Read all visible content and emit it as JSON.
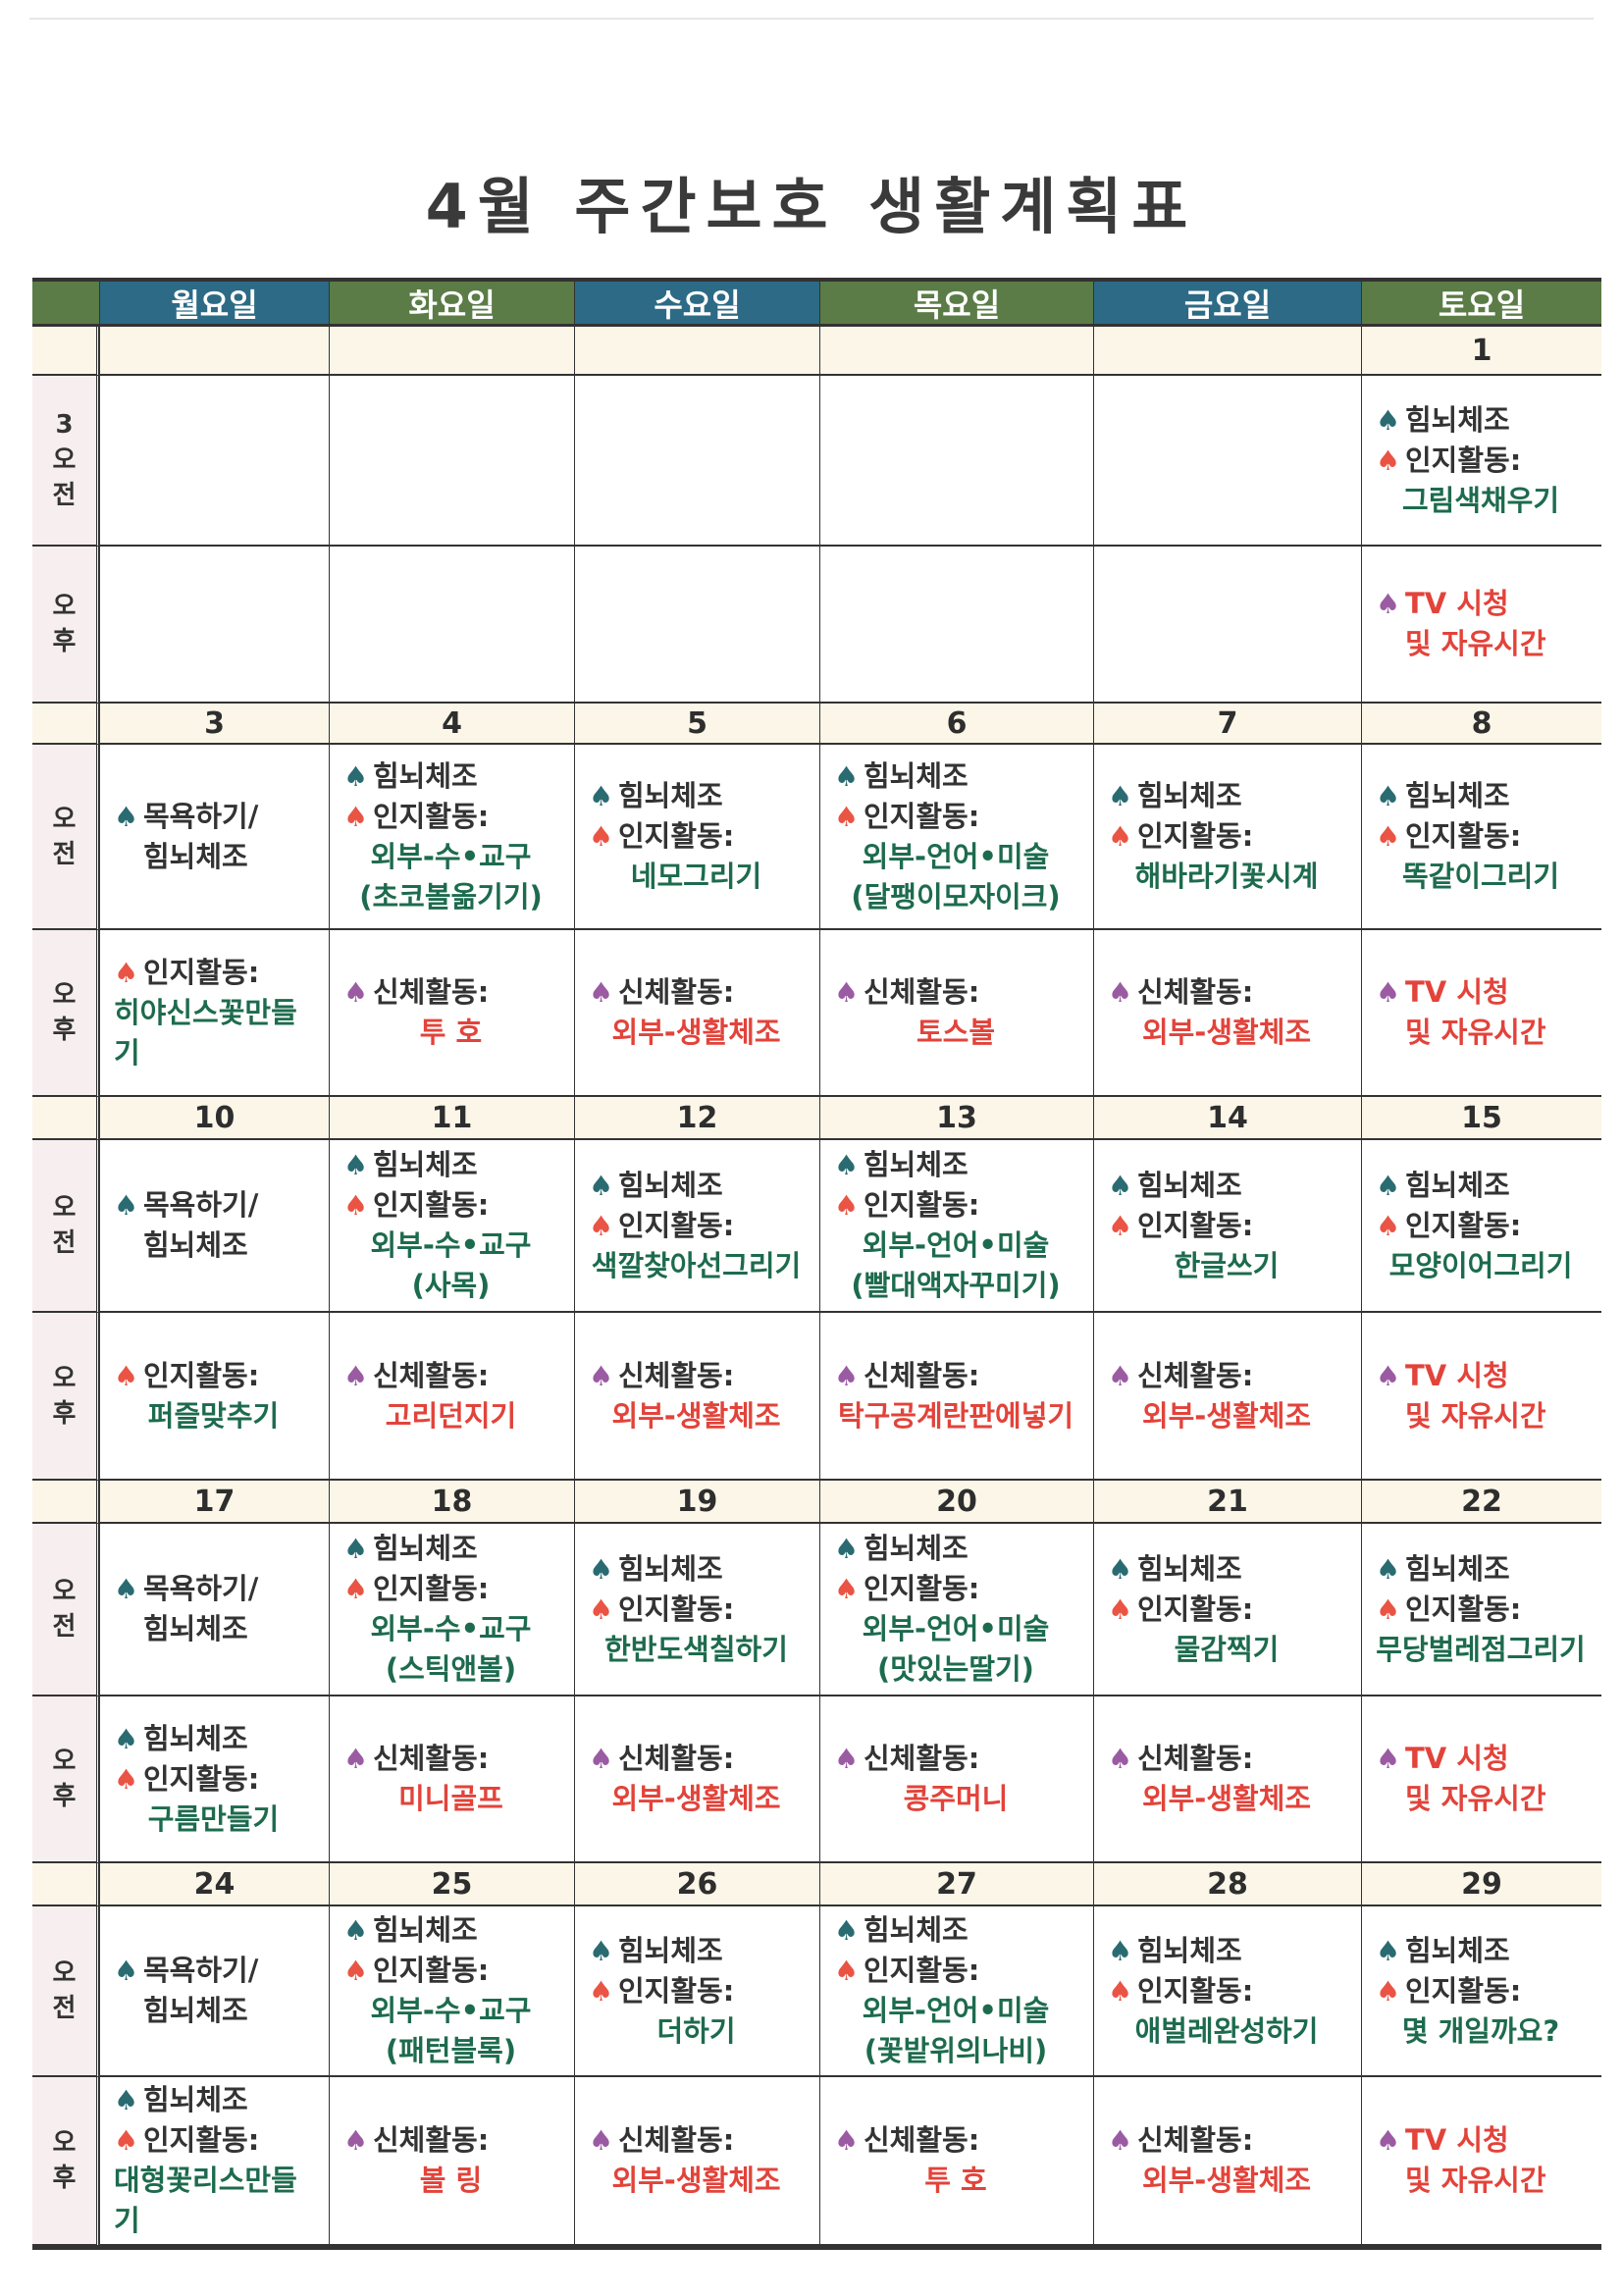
{
  "title": "4월 주간보호 생활계획표",
  "colors": {
    "header_green": "#5b7c46",
    "header_blue": "#2d6a86",
    "spade_teal": "#2a6b72",
    "spade_red": "#ea5444",
    "spade_purple": "#9b5ba3",
    "text_dark": "#333333",
    "text_green": "#1d6b4e",
    "text_red": "#e2433a"
  },
  "header": {
    "days": [
      "월요일",
      "화요일",
      "수요일",
      "목요일",
      "금요일",
      "토요일"
    ]
  },
  "labels": {
    "am": "오전",
    "pm": "오후",
    "first_am_prefix": "3"
  },
  "weeks": [
    {
      "dates": [
        "",
        "",
        "",
        "",
        "",
        "1"
      ],
      "am": [
        [],
        [],
        [],
        [],
        [],
        [
          {
            "s": "teal",
            "t": "힘뇌체조",
            "c": "dark"
          },
          {
            "s": "red",
            "t": "인지활동:",
            "c": "dark"
          },
          {
            "t": "그림색채우기",
            "c": "green",
            "k": "detail"
          }
        ]
      ],
      "pm": [
        [],
        [],
        [],
        [],
        [],
        [
          {
            "s": "purple",
            "t": "TV 시청",
            "c": "red"
          },
          {
            "t": "및 자유시간",
            "c": "red",
            "k": "cont"
          }
        ]
      ]
    },
    {
      "dates": [
        "3",
        "4",
        "5",
        "6",
        "7",
        "8"
      ],
      "am": [
        [
          {
            "s": "teal",
            "t": "목욕하기/",
            "c": "dark"
          },
          {
            "t": "힘뇌체조",
            "c": "dark",
            "k": "cont"
          }
        ],
        [
          {
            "s": "teal",
            "t": "힘뇌체조",
            "c": "dark"
          },
          {
            "s": "red",
            "t": "인지활동:",
            "c": "dark"
          },
          {
            "t": "외부-수•교구",
            "c": "green",
            "k": "detail"
          },
          {
            "t": "(초코볼옮기기)",
            "c": "green",
            "k": "detail"
          }
        ],
        [
          {
            "s": "teal",
            "t": "힘뇌체조",
            "c": "dark"
          },
          {
            "s": "red",
            "t": "인지활동:",
            "c": "dark"
          },
          {
            "t": "네모그리기",
            "c": "green",
            "k": "detail"
          }
        ],
        [
          {
            "s": "teal",
            "t": "힘뇌체조",
            "c": "dark"
          },
          {
            "s": "red",
            "t": "인지활동:",
            "c": "dark"
          },
          {
            "t": "외부-언어•미술",
            "c": "green",
            "k": "detail"
          },
          {
            "t": "(달팽이모자이크)",
            "c": "green",
            "k": "detail"
          }
        ],
        [
          {
            "s": "teal",
            "t": "힘뇌체조",
            "c": "dark"
          },
          {
            "s": "red",
            "t": "인지활동:",
            "c": "dark"
          },
          {
            "t": "해바라기꽃시계",
            "c": "green",
            "k": "detail"
          }
        ],
        [
          {
            "s": "teal",
            "t": "힘뇌체조",
            "c": "dark"
          },
          {
            "s": "red",
            "t": "인지활동:",
            "c": "dark"
          },
          {
            "t": "똑같이그리기",
            "c": "green",
            "k": "detail"
          }
        ]
      ],
      "pm": [
        [
          {
            "s": "red",
            "t": "인지활동:",
            "c": "dark"
          },
          {
            "t": "히야신스꽃만들기",
            "c": "green",
            "k": "wrap"
          }
        ],
        [
          {
            "s": "purple",
            "t": "신체활동:",
            "c": "dark"
          },
          {
            "t": "투 호",
            "c": "red",
            "k": "detail"
          }
        ],
        [
          {
            "s": "purple",
            "t": "신체활동:",
            "c": "dark"
          },
          {
            "t": "외부-생활체조",
            "c": "red",
            "k": "detail"
          }
        ],
        [
          {
            "s": "purple",
            "t": "신체활동:",
            "c": "dark"
          },
          {
            "t": "토스볼",
            "c": "red",
            "k": "detail"
          }
        ],
        [
          {
            "s": "purple",
            "t": "신체활동:",
            "c": "dark"
          },
          {
            "t": "외부-생활체조",
            "c": "red",
            "k": "detail"
          }
        ],
        [
          {
            "s": "purple",
            "t": "TV 시청",
            "c": "red"
          },
          {
            "t": "및 자유시간",
            "c": "red",
            "k": "cont"
          }
        ]
      ]
    },
    {
      "dates": [
        "10",
        "11",
        "12",
        "13",
        "14",
        "15"
      ],
      "am": [
        [
          {
            "s": "teal",
            "t": "목욕하기/",
            "c": "dark"
          },
          {
            "t": "힘뇌체조",
            "c": "dark",
            "k": "cont"
          }
        ],
        [
          {
            "s": "teal",
            "t": "힘뇌체조",
            "c": "dark"
          },
          {
            "s": "red",
            "t": "인지활동:",
            "c": "dark"
          },
          {
            "t": "외부-수•교구",
            "c": "green",
            "k": "detail"
          },
          {
            "t": "(사목)",
            "c": "green",
            "k": "detail"
          }
        ],
        [
          {
            "s": "teal",
            "t": "힘뇌체조",
            "c": "dark"
          },
          {
            "s": "red",
            "t": "인지활동:",
            "c": "dark"
          },
          {
            "t": "색깔찾아선그리기",
            "c": "green",
            "k": "detail"
          }
        ],
        [
          {
            "s": "teal",
            "t": "힘뇌체조",
            "c": "dark"
          },
          {
            "s": "red",
            "t": "인지활동:",
            "c": "dark"
          },
          {
            "t": "외부-언어•미술",
            "c": "green",
            "k": "detail"
          },
          {
            "t": "(빨대액자꾸미기)",
            "c": "green",
            "k": "detail"
          }
        ],
        [
          {
            "s": "teal",
            "t": "힘뇌체조",
            "c": "dark"
          },
          {
            "s": "red",
            "t": "인지활동:",
            "c": "dark"
          },
          {
            "t": "한글쓰기",
            "c": "green",
            "k": "detail"
          }
        ],
        [
          {
            "s": "teal",
            "t": "힘뇌체조",
            "c": "dark"
          },
          {
            "s": "red",
            "t": "인지활동:",
            "c": "dark"
          },
          {
            "t": "모양이어그리기",
            "c": "green",
            "k": "detail"
          }
        ]
      ],
      "pm": [
        [
          {
            "s": "red",
            "t": "인지활동:",
            "c": "dark"
          },
          {
            "t": "퍼즐맞추기",
            "c": "green",
            "k": "detail"
          }
        ],
        [
          {
            "s": "purple",
            "t": "신체활동:",
            "c": "dark"
          },
          {
            "t": "고리던지기",
            "c": "red",
            "k": "detail"
          }
        ],
        [
          {
            "s": "purple",
            "t": "신체활동:",
            "c": "dark"
          },
          {
            "t": "외부-생활체조",
            "c": "red",
            "k": "detail"
          }
        ],
        [
          {
            "s": "purple",
            "t": "신체활동:",
            "c": "dark"
          },
          {
            "t": "탁구공계란판에넣기",
            "c": "red",
            "k": "detail"
          }
        ],
        [
          {
            "s": "purple",
            "t": "신체활동:",
            "c": "dark"
          },
          {
            "t": "외부-생활체조",
            "c": "red",
            "k": "detail"
          }
        ],
        [
          {
            "s": "purple",
            "t": "TV 시청",
            "c": "red"
          },
          {
            "t": "및 자유시간",
            "c": "red",
            "k": "cont"
          }
        ]
      ]
    },
    {
      "dates": [
        "17",
        "18",
        "19",
        "20",
        "21",
        "22"
      ],
      "am": [
        [
          {
            "s": "teal",
            "t": "목욕하기/",
            "c": "dark"
          },
          {
            "t": "힘뇌체조",
            "c": "dark",
            "k": "cont"
          }
        ],
        [
          {
            "s": "teal",
            "t": "힘뇌체조",
            "c": "dark"
          },
          {
            "s": "red",
            "t": "인지활동:",
            "c": "dark"
          },
          {
            "t": "외부-수•교구",
            "c": "green",
            "k": "detail"
          },
          {
            "t": "(스틱앤볼)",
            "c": "green",
            "k": "detail"
          }
        ],
        [
          {
            "s": "teal",
            "t": "힘뇌체조",
            "c": "dark"
          },
          {
            "s": "red",
            "t": "인지활동:",
            "c": "dark"
          },
          {
            "t": "한반도색칠하기",
            "c": "green",
            "k": "detail"
          }
        ],
        [
          {
            "s": "teal",
            "t": "힘뇌체조",
            "c": "dark"
          },
          {
            "s": "red",
            "t": "인지활동:",
            "c": "dark"
          },
          {
            "t": "외부-언어•미술",
            "c": "green",
            "k": "detail"
          },
          {
            "t": "(맛있는딸기)",
            "c": "green",
            "k": "detail"
          }
        ],
        [
          {
            "s": "teal",
            "t": "힘뇌체조",
            "c": "dark"
          },
          {
            "s": "red",
            "t": "인지활동:",
            "c": "dark"
          },
          {
            "t": "물감찍기",
            "c": "green",
            "k": "detail"
          }
        ],
        [
          {
            "s": "teal",
            "t": "힘뇌체조",
            "c": "dark"
          },
          {
            "s": "red",
            "t": "인지활동:",
            "c": "dark"
          },
          {
            "t": "무당벌레점그리기",
            "c": "green",
            "k": "detail"
          }
        ]
      ],
      "pm": [
        [
          {
            "s": "teal",
            "t": "힘뇌체조",
            "c": "dark"
          },
          {
            "s": "red",
            "t": "인지활동:",
            "c": "dark"
          },
          {
            "t": "구름만들기",
            "c": "green",
            "k": "detail"
          }
        ],
        [
          {
            "s": "purple",
            "t": "신체활동:",
            "c": "dark"
          },
          {
            "t": "미니골프",
            "c": "red",
            "k": "detail"
          }
        ],
        [
          {
            "s": "purple",
            "t": "신체활동:",
            "c": "dark"
          },
          {
            "t": "외부-생활체조",
            "c": "red",
            "k": "detail"
          }
        ],
        [
          {
            "s": "purple",
            "t": "신체활동:",
            "c": "dark"
          },
          {
            "t": "콩주머니",
            "c": "red",
            "k": "detail"
          }
        ],
        [
          {
            "s": "purple",
            "t": "신체활동:",
            "c": "dark"
          },
          {
            "t": "외부-생활체조",
            "c": "red",
            "k": "detail"
          }
        ],
        [
          {
            "s": "purple",
            "t": "TV 시청",
            "c": "red"
          },
          {
            "t": "및 자유시간",
            "c": "red",
            "k": "cont"
          }
        ]
      ]
    },
    {
      "dates": [
        "24",
        "25",
        "26",
        "27",
        "28",
        "29"
      ],
      "am": [
        [
          {
            "s": "teal",
            "t": "목욕하기/",
            "c": "dark"
          },
          {
            "t": "힘뇌체조",
            "c": "dark",
            "k": "cont"
          }
        ],
        [
          {
            "s": "teal",
            "t": "힘뇌체조",
            "c": "dark"
          },
          {
            "s": "red",
            "t": "인지활동:",
            "c": "dark"
          },
          {
            "t": "외부-수•교구",
            "c": "green",
            "k": "detail"
          },
          {
            "t": "(패턴블록)",
            "c": "green",
            "k": "detail"
          }
        ],
        [
          {
            "s": "teal",
            "t": "힘뇌체조",
            "c": "dark"
          },
          {
            "s": "red",
            "t": "인지활동:",
            "c": "dark"
          },
          {
            "t": "더하기",
            "c": "green",
            "k": "detail"
          }
        ],
        [
          {
            "s": "teal",
            "t": "힘뇌체조",
            "c": "dark"
          },
          {
            "s": "red",
            "t": "인지활동:",
            "c": "dark"
          },
          {
            "t": "외부-언어•미술",
            "c": "green",
            "k": "detail"
          },
          {
            "t": "(꽃밭위의나비)",
            "c": "green",
            "k": "detail"
          }
        ],
        [
          {
            "s": "teal",
            "t": "힘뇌체조",
            "c": "dark"
          },
          {
            "s": "red",
            "t": "인지활동:",
            "c": "dark"
          },
          {
            "t": "애벌레완성하기",
            "c": "green",
            "k": "detail"
          }
        ],
        [
          {
            "s": "teal",
            "t": "힘뇌체조",
            "c": "dark"
          },
          {
            "s": "red",
            "t": "인지활동:",
            "c": "dark"
          },
          {
            "t": "몇 개일까요?",
            "c": "green",
            "k": "detail"
          }
        ]
      ],
      "pm": [
        [
          {
            "s": "teal",
            "t": "힘뇌체조",
            "c": "dark"
          },
          {
            "s": "red",
            "t": "인지활동:",
            "c": "dark"
          },
          {
            "t": "대형꽃리스만들기",
            "c": "green",
            "k": "wrap"
          }
        ],
        [
          {
            "s": "purple",
            "t": "신체활동:",
            "c": "dark"
          },
          {
            "t": "볼 링",
            "c": "red",
            "k": "detail"
          }
        ],
        [
          {
            "s": "purple",
            "t": "신체활동:",
            "c": "dark"
          },
          {
            "t": "외부-생활체조",
            "c": "red",
            "k": "detail"
          }
        ],
        [
          {
            "s": "purple",
            "t": "신체활동:",
            "c": "dark"
          },
          {
            "t": "투 호",
            "c": "red",
            "k": "detail"
          }
        ],
        [
          {
            "s": "purple",
            "t": "신체활동:",
            "c": "dark"
          },
          {
            "t": "외부-생활체조",
            "c": "red",
            "k": "detail"
          }
        ],
        [
          {
            "s": "purple",
            "t": "TV 시청",
            "c": "red"
          },
          {
            "t": "및 자유시간",
            "c": "red",
            "k": "cont"
          }
        ]
      ]
    }
  ]
}
